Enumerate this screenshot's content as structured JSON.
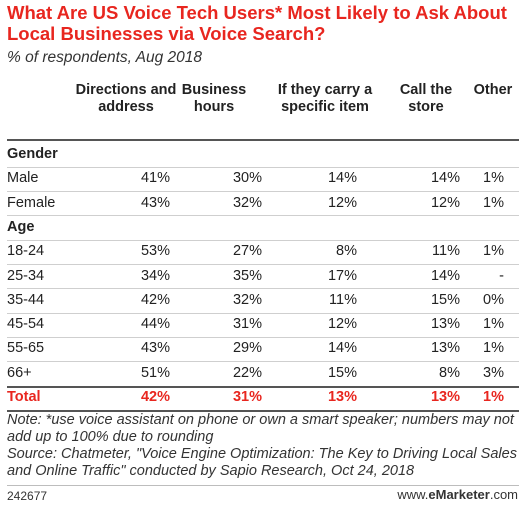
{
  "title": "What Are US Voice Tech Users* Most Likely to Ask About Local Businesses via Voice Search?",
  "subtitle": "% of respondents, Aug 2018",
  "columns": [
    {
      "label": "Directions and address"
    },
    {
      "label": "Business hours"
    },
    {
      "label": "If they carry a specific item"
    },
    {
      "label": "Call the store"
    },
    {
      "label": "Other"
    }
  ],
  "sections": [
    {
      "label": "Gender",
      "rows": [
        {
          "label": "Male",
          "values": [
            "41%",
            "30%",
            "14%",
            "14%",
            "1%"
          ]
        },
        {
          "label": "Female",
          "values": [
            "43%",
            "32%",
            "12%",
            "12%",
            "1%"
          ]
        }
      ]
    },
    {
      "label": "Age",
      "rows": [
        {
          "label": "18-24",
          "values": [
            "53%",
            "27%",
            "8%",
            "11%",
            "1%"
          ]
        },
        {
          "label": "25-34",
          "values": [
            "34%",
            "35%",
            "17%",
            "14%",
            "-"
          ]
        },
        {
          "label": "35-44",
          "values": [
            "42%",
            "32%",
            "11%",
            "15%",
            "0%"
          ]
        },
        {
          "label": "45-54",
          "values": [
            "44%",
            "31%",
            "12%",
            "13%",
            "1%"
          ]
        },
        {
          "label": "55-65",
          "values": [
            "43%",
            "29%",
            "14%",
            "13%",
            "1%"
          ]
        },
        {
          "label": "66+",
          "values": [
            "51%",
            "22%",
            "15%",
            "8%",
            "3%"
          ]
        }
      ]
    }
  ],
  "total": {
    "label": "Total",
    "values": [
      "42%",
      "31%",
      "13%",
      "13%",
      "1%"
    ]
  },
  "note": "Note: *use voice assistant on phone or own a smart speaker; numbers may not add up to 100% due to rounding",
  "source": "Source: Chatmeter, \"Voice Engine Optimization: The Key to Driving Local Sales and Online Traffic\" conducted by Sapio Research, Oct 24, 2018",
  "chart_id": "242677",
  "brand": {
    "prefix": "www.",
    "name": "eMarketer",
    "suffix": ".com"
  },
  "colors": {
    "title": "#e8261f",
    "total": "#e8261f",
    "text": "#222222"
  },
  "chart_data": {
    "type": "table",
    "title": "What Are US Voice Tech Users* Most Likely to Ask About Local Businesses via Voice Search?",
    "subtitle": "% of respondents, Aug 2018",
    "columns": [
      "Directions and address",
      "Business hours",
      "If they carry a specific item",
      "Call the store",
      "Other"
    ],
    "rows": [
      {
        "group": "Gender",
        "label": "Male",
        "values": [
          41,
          30,
          14,
          14,
          1
        ]
      },
      {
        "group": "Gender",
        "label": "Female",
        "values": [
          43,
          32,
          12,
          12,
          1
        ]
      },
      {
        "group": "Age",
        "label": "18-24",
        "values": [
          53,
          27,
          8,
          11,
          1
        ]
      },
      {
        "group": "Age",
        "label": "25-34",
        "values": [
          34,
          35,
          17,
          14,
          null
        ]
      },
      {
        "group": "Age",
        "label": "35-44",
        "values": [
          42,
          32,
          11,
          15,
          0
        ]
      },
      {
        "group": "Age",
        "label": "45-54",
        "values": [
          44,
          31,
          12,
          13,
          1
        ]
      },
      {
        "group": "Age",
        "label": "55-65",
        "values": [
          43,
          29,
          14,
          13,
          1
        ]
      },
      {
        "group": "Age",
        "label": "66+",
        "values": [
          51,
          22,
          15,
          8,
          3
        ]
      },
      {
        "group": "",
        "label": "Total",
        "values": [
          42,
          31,
          13,
          13,
          1
        ]
      }
    ]
  }
}
